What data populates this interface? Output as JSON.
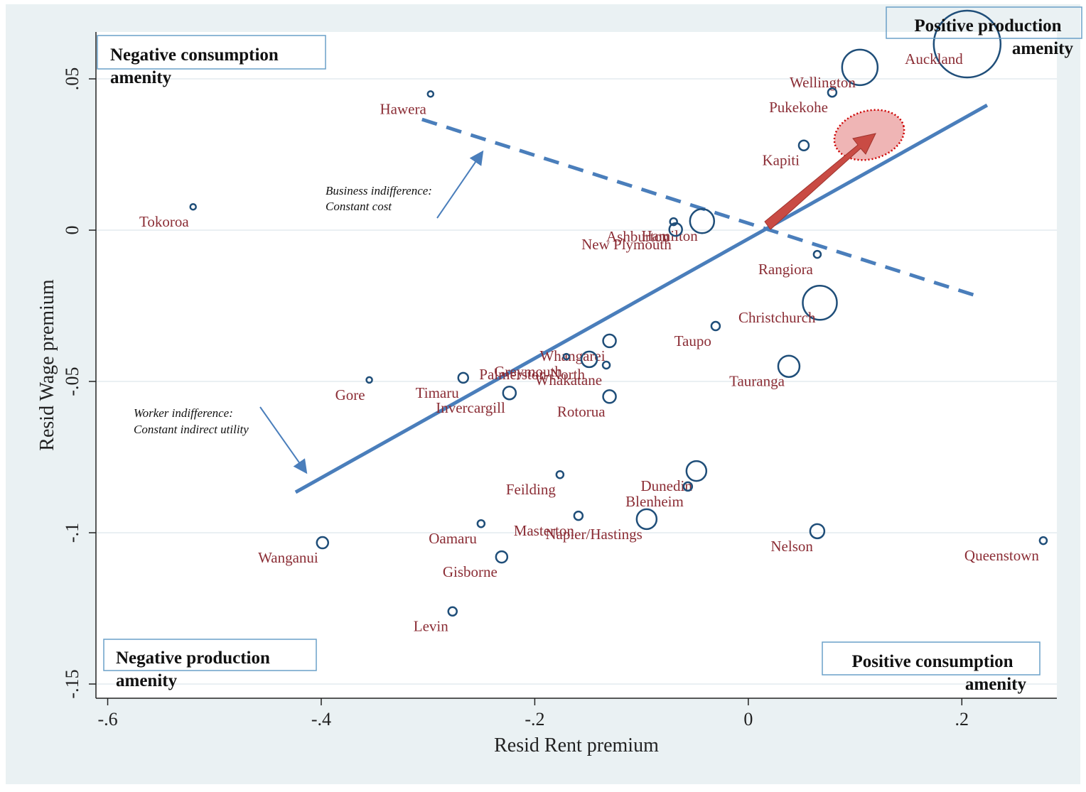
{
  "chart_data": {
    "type": "scatter",
    "x_label": "Resid Rent premium",
    "y_label": "Resid Wage premium",
    "xlim": [
      -0.611,
      0.289
    ],
    "ylim": [
      -0.1547,
      0.0655
    ],
    "xticks": [
      {
        "value": -0.6,
        "label": "-.6"
      },
      {
        "value": -0.4,
        "label": "-.4"
      },
      {
        "value": -0.2,
        "label": "-.2"
      },
      0,
      {
        "value": 0.2,
        "label": ".2"
      }
    ],
    "yticks": [
      {
        "value": 0.05,
        "label": ".05"
      },
      0,
      {
        "value": -0.05,
        "label": "-.05"
      },
      {
        "value": -0.1,
        "label": "-.1"
      },
      {
        "value": -0.15,
        "label": "-.15"
      }
    ],
    "grid": true,
    "color": "#1f4e79",
    "label_color": "#8b2d35",
    "points": {
      "labels": [
        "Auckland",
        "Wellington",
        "Pukekohe",
        "Kapiti",
        "Hawera",
        "Tokoroa",
        "Ashburton",
        "Hamilton",
        "New Plymouth",
        "Rangiora",
        "Christchurch",
        "Taupo",
        "Tauranga",
        "Whangarei",
        "Greymouth",
        "Palmerston North",
        "Whakatane",
        "Timaru",
        "Gore",
        "Invercargill",
        "Rotorua",
        "Feilding",
        "Dunedin",
        "Blenheim",
        "Napier/Hastings",
        "Masterton",
        "Oamaru",
        "Wanganui",
        "Gisborne",
        "Levin",
        "Nelson",
        "Queenstown"
      ],
      "x": [
        0.205,
        0.1045,
        0.0786,
        0.052,
        -0.2976,
        -0.52,
        -0.07,
        -0.0433,
        -0.068,
        0.0646,
        0.067,
        -0.0306,
        0.038,
        -0.13,
        -0.1704,
        -0.149,
        -0.133,
        -0.267,
        -0.355,
        -0.2237,
        -0.13,
        -0.1764,
        -0.0486,
        -0.0566,
        -0.0952,
        -0.1591,
        -0.2503,
        -0.3988,
        -0.231,
        -0.277,
        0.0646,
        0.2763
      ],
      "y": [
        0.0615,
        0.0538,
        0.0455,
        0.028,
        0.045,
        0.0077,
        0.0028,
        0.003,
        0.0002,
        -0.008,
        -0.024,
        -0.0317,
        -0.045,
        -0.0366,
        -0.0418,
        -0.0427,
        -0.0446,
        -0.0488,
        -0.0495,
        -0.0538,
        -0.055,
        -0.0808,
        -0.0796,
        -0.0847,
        -0.0955,
        -0.0944,
        -0.097,
        -0.1033,
        -0.108,
        -0.126,
        -0.0995,
        -0.1026
      ],
      "sizes": [
        47,
        25,
        6,
        7,
        4,
        4,
        5,
        17,
        9,
        5,
        24,
        6,
        15,
        9,
        4,
        11,
        5,
        7,
        4,
        9,
        9,
        5,
        14,
        6,
        14,
        6,
        5,
        8,
        8,
        6,
        10,
        5
      ]
    },
    "lines": [
      {
        "style": "solid",
        "x": [
          -0.424,
          0.2237
        ],
        "y": [
          -0.0866,
          0.0413
        ]
      },
      {
        "style": "dashed",
        "x": [
          -0.3056,
          0.211
        ],
        "y": [
          0.0366,
          -0.0214
        ]
      }
    ],
    "annotations": {
      "negative_consumption": [
        "Negative consumption",
        "amenity"
      ],
      "positive_production": [
        "Positive production",
        "amenity"
      ],
      "negative_production": [
        "Negative production",
        "amenity"
      ],
      "positive_consumption": [
        "Positive consumption",
        "amenity"
      ],
      "business": [
        "Business indifference:",
        "Constant cost"
      ],
      "worker": [
        "Worker indifference:",
        "Constant indirect utility"
      ]
    }
  }
}
